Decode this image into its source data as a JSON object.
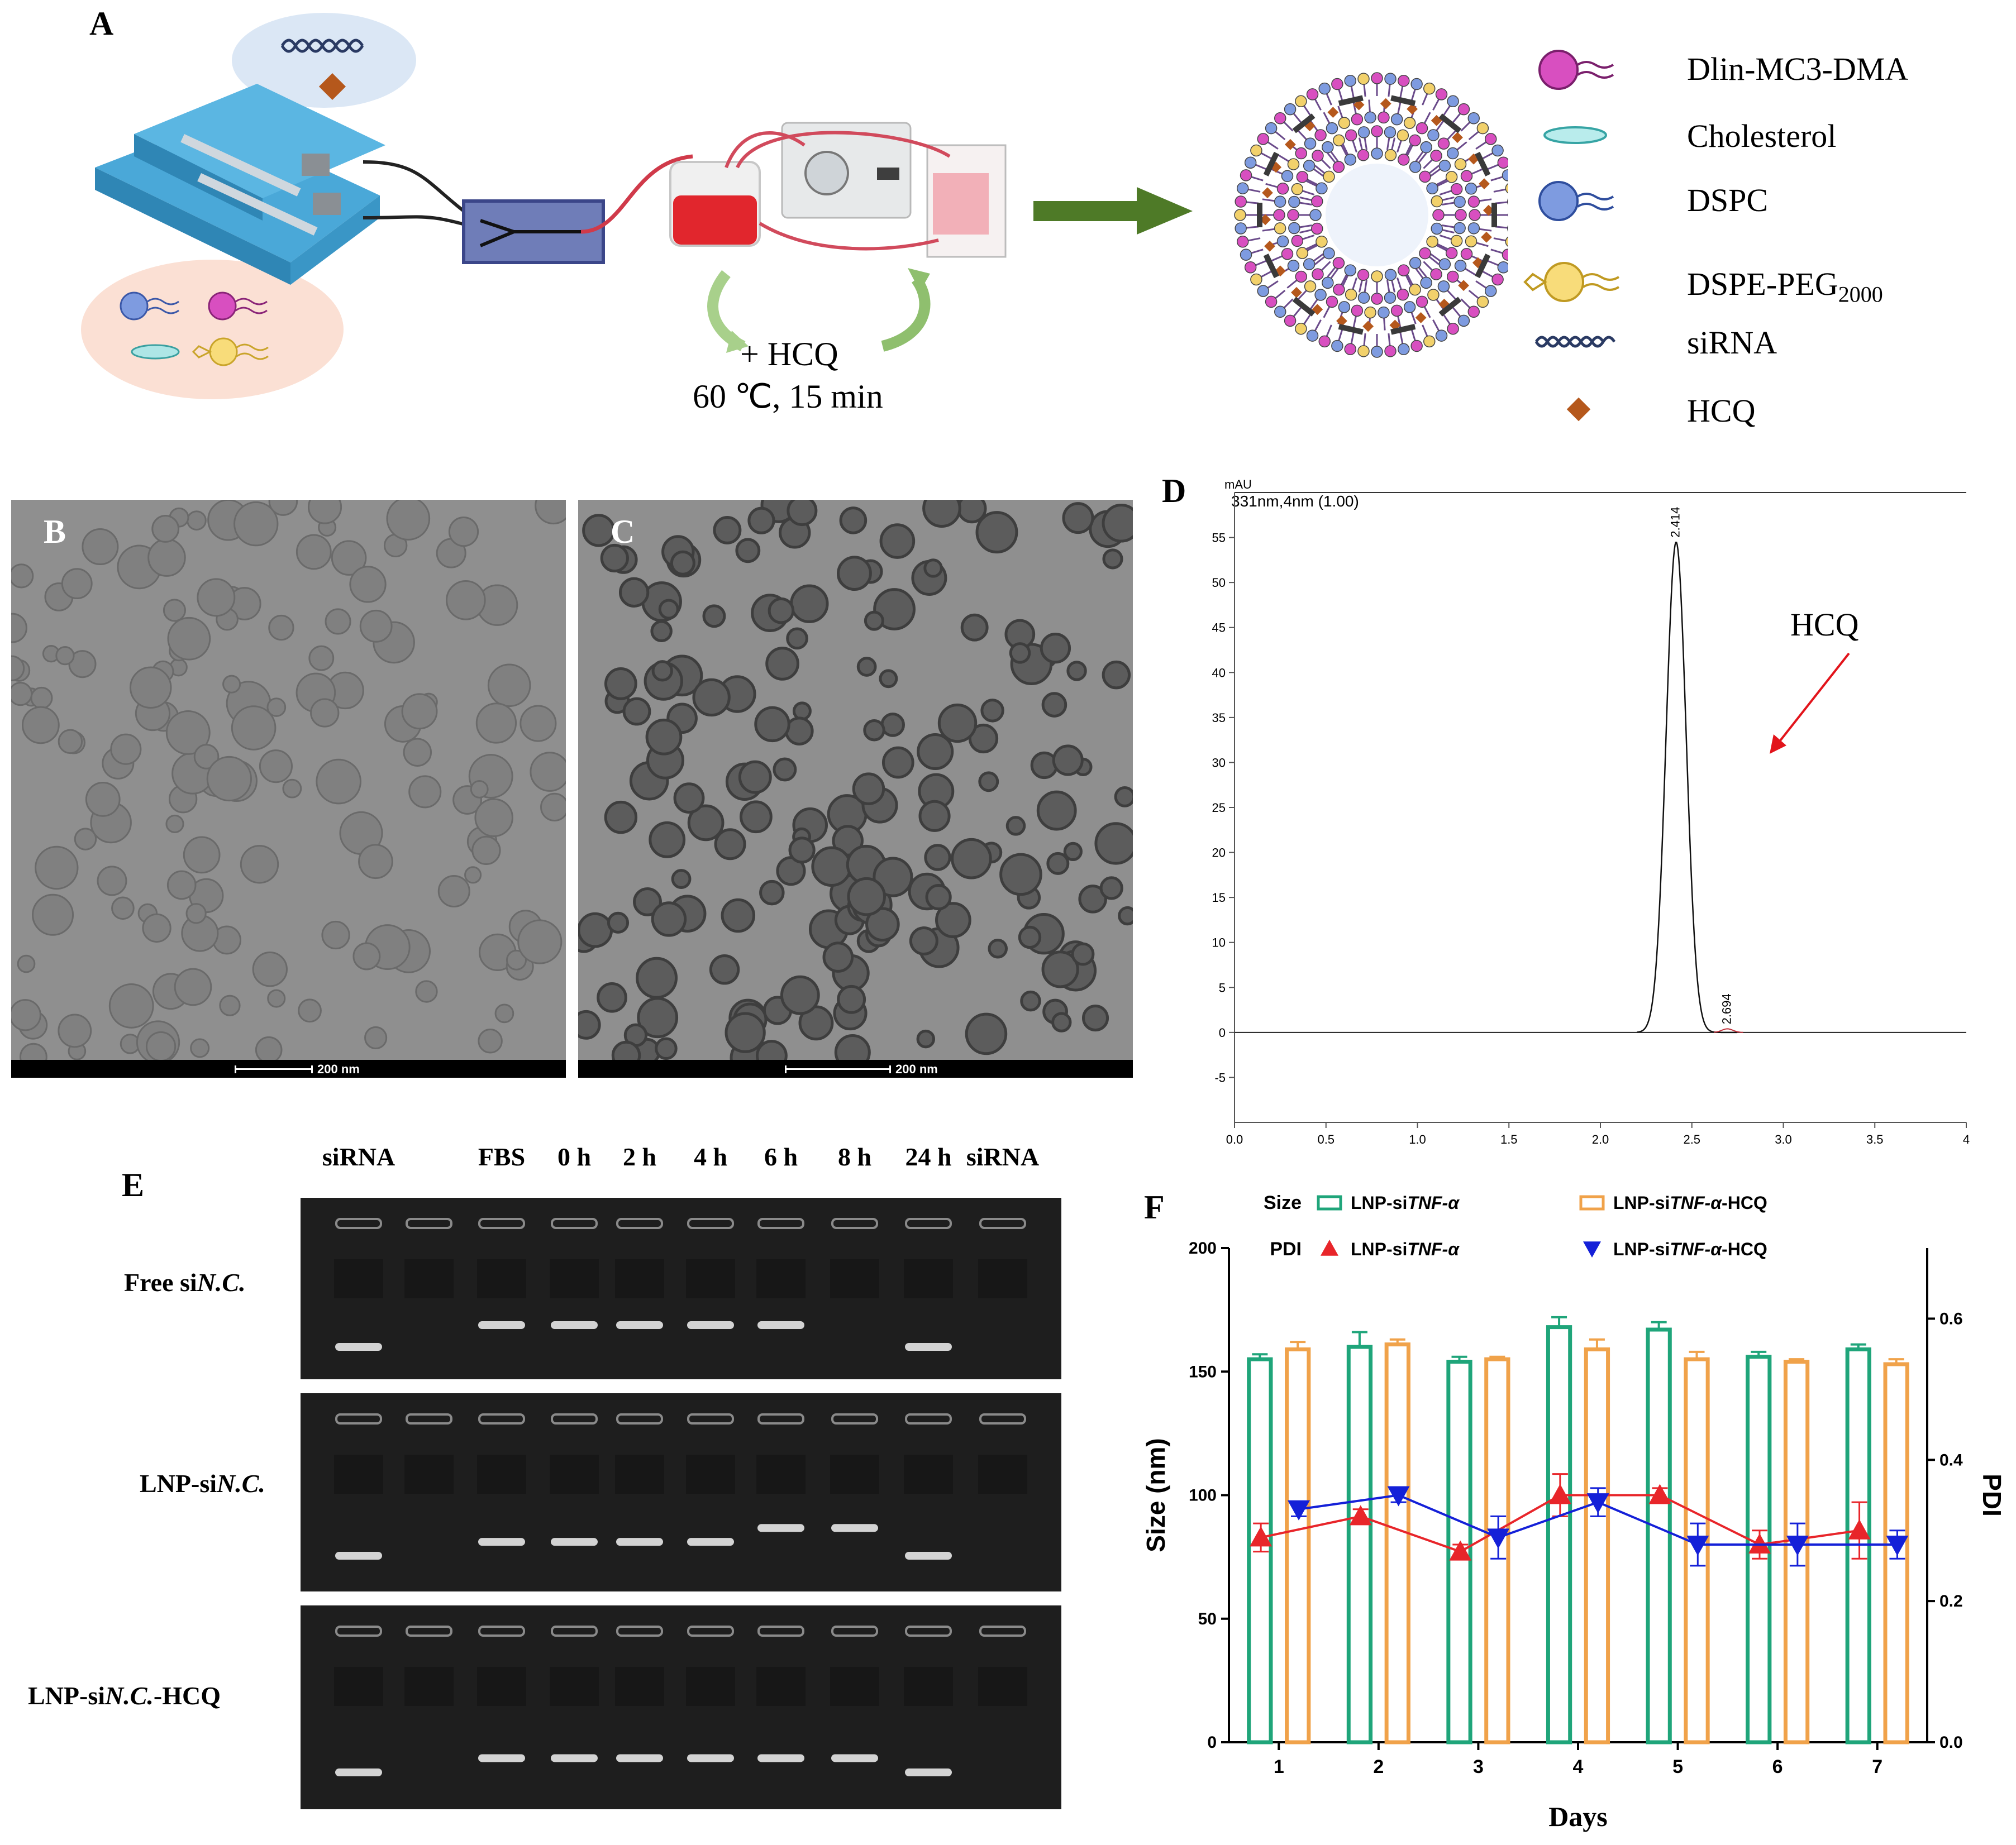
{
  "panels": {
    "A": "A",
    "B": "B",
    "C": "C",
    "D": "D",
    "E": "E",
    "F": "F"
  },
  "panelA": {
    "heat_text": "+ HCQ",
    "heat_cond": "60 ℃, 15 min",
    "legend": [
      {
        "label": "Dlin-MC3-DMA",
        "icon": "dlin-mc3-dma-lipid-icon",
        "color": "#d84fc0"
      },
      {
        "label": "Cholesterol",
        "icon": "cholesterol-icon",
        "color": "#7fd6d6"
      },
      {
        "label": "DSPC",
        "icon": "dspc-lipid-icon",
        "color": "#7e9be0"
      },
      {
        "label": "DSPE-PEG",
        "sub": "2000",
        "icon": "dspe-peg-lipid-icon",
        "color": "#f2d16b"
      },
      {
        "label": "siRNA",
        "icon": "sirna-icon",
        "color": "#3a4a70"
      },
      {
        "label": "HCQ",
        "icon": "hcq-icon",
        "color": "#b5581c"
      }
    ]
  },
  "panelB": {
    "scale": "200 nm"
  },
  "panelC": {
    "scale": "200 nm"
  },
  "panelD": {
    "unit": "mAU",
    "header": "331nm,4nm (1.00)",
    "annotation": "HCQ",
    "peaks": [
      {
        "label": "2.414",
        "x": 2.414,
        "y": 54.5
      },
      {
        "label": "2.694",
        "x": 2.694,
        "y": 0.4
      }
    ],
    "x_ticks": [
      "0.0",
      "0.5",
      "1.0",
      "1.5",
      "2.0",
      "2.5",
      "3.0",
      "3.5",
      "4"
    ],
    "y_ticks": [
      "55",
      "50",
      "45",
      "40",
      "35",
      "30",
      "25",
      "20",
      "15",
      "10",
      "5",
      "0",
      "-5"
    ]
  },
  "panelE": {
    "lanes": [
      "siRNA",
      "",
      "FBS",
      "0 h",
      "2 h",
      "4 h",
      "6 h",
      "8 h",
      "24 h",
      "siRNA"
    ],
    "rows": [
      {
        "prefix": "Free si",
        "italic": "N.C.",
        "suffix": ""
      },
      {
        "prefix": "LNP-si",
        "italic": "N.C.",
        "suffix": ""
      },
      {
        "prefix": "LNP-si",
        "italic": "N.C.",
        "suffix": "-HCQ"
      }
    ]
  },
  "chart_data": {
    "type": "bar",
    "title": "",
    "xlabel": "Days",
    "ylabel": "Size (nm)",
    "y2label": "PDI",
    "categories": [
      "1",
      "2",
      "3",
      "4",
      "5",
      "6",
      "7"
    ],
    "ylim": [
      0,
      200
    ],
    "y2lim": [
      0,
      0.7
    ],
    "y_ticks": [
      "0",
      "50",
      "100",
      "150",
      "200"
    ],
    "y2_ticks": [
      "0.0",
      "0.2",
      "0.4",
      "0.6"
    ],
    "legend_size_title": "Size",
    "legend_pdi_title": "PDI",
    "series": [
      {
        "name": "LNP-siTNF-α",
        "name_parts": [
          "LNP-si",
          "TNF-α",
          ""
        ],
        "kind": "bar",
        "axis": "left",
        "color": "#1fa57a",
        "values": [
          155,
          160,
          154,
          168,
          167,
          156,
          159
        ],
        "errors": [
          2,
          6,
          2,
          4,
          3,
          2,
          2
        ]
      },
      {
        "name": "LNP-siTNF-α-HCQ",
        "name_parts": [
          "LNP-si",
          "TNF-α",
          "-HCQ"
        ],
        "kind": "bar",
        "axis": "left",
        "color": "#f0a24a",
        "values": [
          159,
          161,
          155,
          159,
          155,
          154,
          153
        ],
        "errors": [
          3,
          2,
          1,
          4,
          3,
          1,
          2
        ]
      },
      {
        "name": "LNP-siTNF-α",
        "name_parts": [
          "LNP-si",
          "TNF-α",
          ""
        ],
        "kind": "line",
        "axis": "right",
        "color": "#e8252a",
        "marker": "triangle-up",
        "values": [
          0.29,
          0.32,
          0.27,
          0.35,
          0.35,
          0.28,
          0.3
        ],
        "errors": [
          0.02,
          0.01,
          0.01,
          0.03,
          0.01,
          0.02,
          0.04
        ]
      },
      {
        "name": "LNP-siTNF-α-HCQ",
        "name_parts": [
          "LNP-si",
          "TNF-α",
          "-HCQ"
        ],
        "kind": "line",
        "axis": "right",
        "color": "#1420d8",
        "marker": "triangle-down",
        "values": [
          0.33,
          0.35,
          0.29,
          0.34,
          0.28,
          0.28,
          0.28
        ],
        "errors": [
          0.01,
          0.01,
          0.03,
          0.02,
          0.03,
          0.03,
          0.02
        ]
      }
    ]
  }
}
